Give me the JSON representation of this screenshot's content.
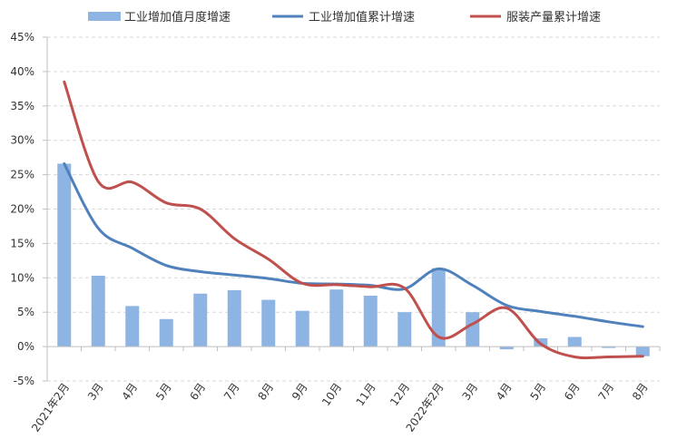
{
  "chart_data": {
    "type": "bar",
    "categories": [
      "2021年2月",
      "3月",
      "4月",
      "5月",
      "6月",
      "7月",
      "8月",
      "9月",
      "10月",
      "11月",
      "12月",
      "2022年2月",
      "3月",
      "4月",
      "5月",
      "6月",
      "7月",
      "8月"
    ],
    "series": [
      {
        "name": "工业增加值月度增速",
        "type": "bar",
        "color": "#8DB4E2",
        "values": [
          26.6,
          10.3,
          5.9,
          4.0,
          7.7,
          8.2,
          6.8,
          5.2,
          8.3,
          7.4,
          5.0,
          11.4,
          5.0,
          -0.4,
          1.2,
          1.4,
          -0.2,
          -1.4
        ]
      },
      {
        "name": "工业增加值累计增速",
        "type": "line",
        "color": "#4F81BD",
        "values": [
          26.6,
          17.2,
          14.3,
          11.8,
          10.9,
          10.4,
          9.9,
          9.2,
          9.1,
          8.9,
          8.4,
          11.3,
          8.9,
          6.0,
          5.1,
          4.4,
          3.6,
          2.9
        ]
      },
      {
        "name": "服装产量累计增速",
        "type": "line",
        "color": "#C0504D",
        "values": [
          38.5,
          24.0,
          23.9,
          20.9,
          20.0,
          15.7,
          12.7,
          9.2,
          9.0,
          8.7,
          8.5,
          1.4,
          3.3,
          5.6,
          0.4,
          -1.5,
          -1.5,
          -1.4
        ]
      }
    ],
    "y_ticks": [
      "45%",
      "40%",
      "35%",
      "30%",
      "25%",
      "20%",
      "15%",
      "10%",
      "5%",
      "0%",
      "-5%"
    ],
    "ylim": [
      -5,
      45
    ],
    "y_step": 5,
    "grid": true,
    "legend_position": "top"
  }
}
